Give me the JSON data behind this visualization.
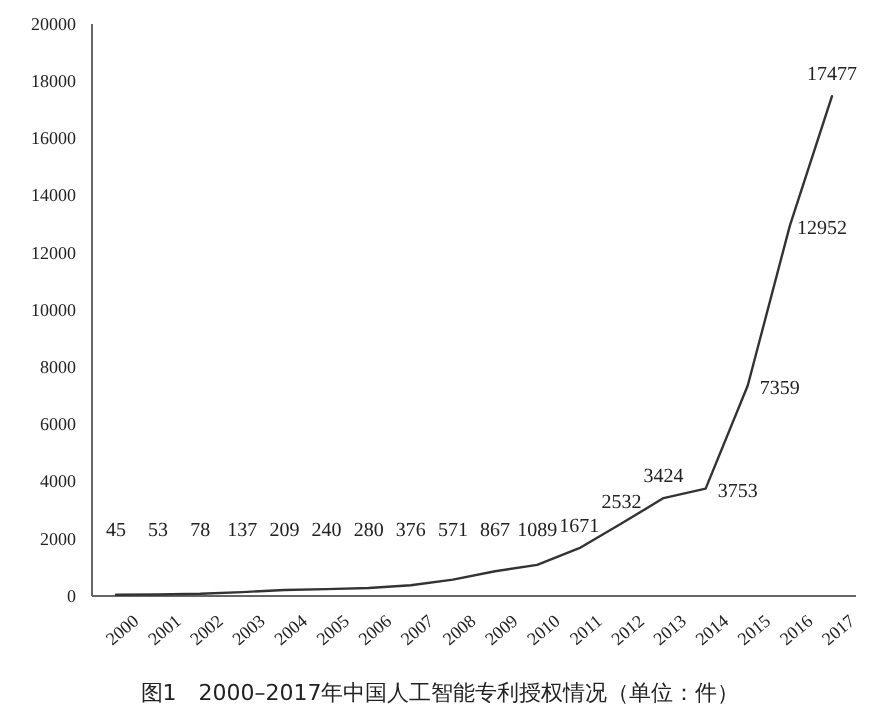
{
  "chart_data": {
    "type": "line",
    "title": "图1　2000–2017年中国人工智能专利授权情况（单位：件）",
    "categories": [
      "2000",
      "2001",
      "2002",
      "2003",
      "2004",
      "2005",
      "2006",
      "2007",
      "2008",
      "2009",
      "2010",
      "2011",
      "2012",
      "2013",
      "2014",
      "2015",
      "2016",
      "2017"
    ],
    "series": [
      {
        "color": "#333333",
        "values": [
          45,
          53,
          78,
          137,
          209,
          240,
          280,
          376,
          571,
          867,
          1089,
          1671,
          2532,
          3424,
          3753,
          7359,
          12952,
          17477
        ]
      }
    ],
    "ylim": [
      0,
      20000
    ],
    "yticks": [
      0,
      2000,
      4000,
      6000,
      8000,
      10000,
      12000,
      14000,
      16000,
      18000,
      20000
    ],
    "data_labels": true,
    "marker": "none",
    "line_style": "solid"
  }
}
